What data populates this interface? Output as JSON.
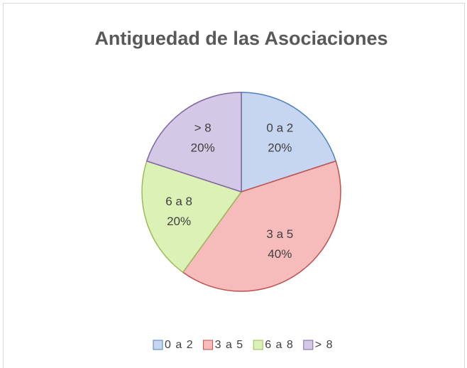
{
  "chart_data": {
    "type": "pie",
    "title": "Antiguedad de las Asociaciones",
    "categories": [
      "0 a 2",
      "3 a 5",
      "6 a 8",
      "> 8"
    ],
    "values": [
      20,
      40,
      20,
      20
    ],
    "value_labels": [
      "20%",
      "40%",
      "20%",
      "20%"
    ],
    "colors": [
      "#c6d6f1",
      "#f6bcbc",
      "#dcf1b6",
      "#d3c8e6"
    ],
    "edge_colors": [
      "#4f81bd",
      "#c0504d",
      "#9bbb59",
      "#8064a2"
    ],
    "legend": "bottom"
  }
}
